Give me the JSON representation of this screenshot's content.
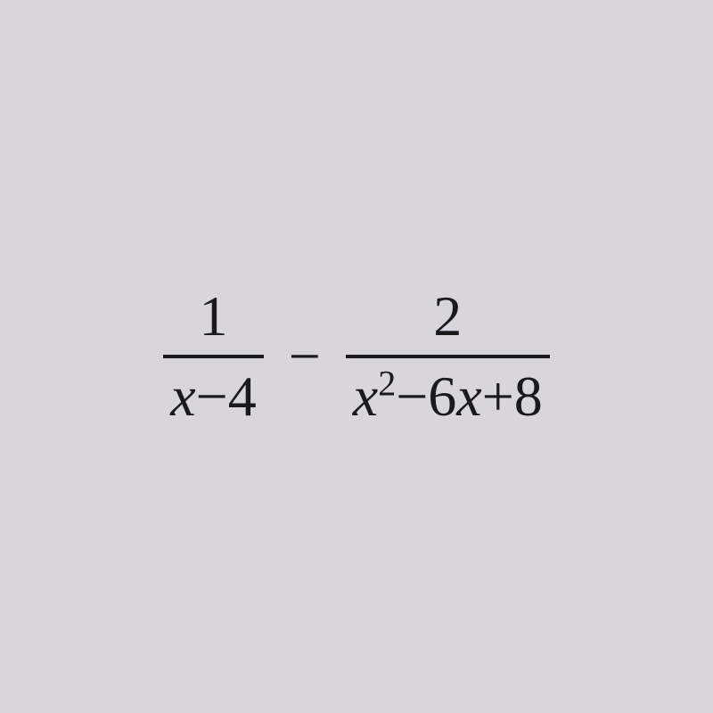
{
  "expression": {
    "type": "subtraction",
    "background_color": "#d8d5db",
    "text_color": "#1a1a1a",
    "font_family": "Cambria Math, Times New Roman, serif",
    "base_fontsize": 64,
    "operator_fontsize": 64,
    "fraction_bar_width": 4,
    "left_fraction": {
      "numerator": "1",
      "denominator_var": "x",
      "denominator_op": "−",
      "denominator_const": "4"
    },
    "operator": "−",
    "right_fraction": {
      "numerator": "2",
      "denominator_var1": "x",
      "denominator_exp": "2",
      "denominator_op1": "−",
      "denominator_coeff": "6",
      "denominator_var2": "x",
      "denominator_op2": "+",
      "denominator_const": "8"
    },
    "superscript_fontsize": 40
  }
}
